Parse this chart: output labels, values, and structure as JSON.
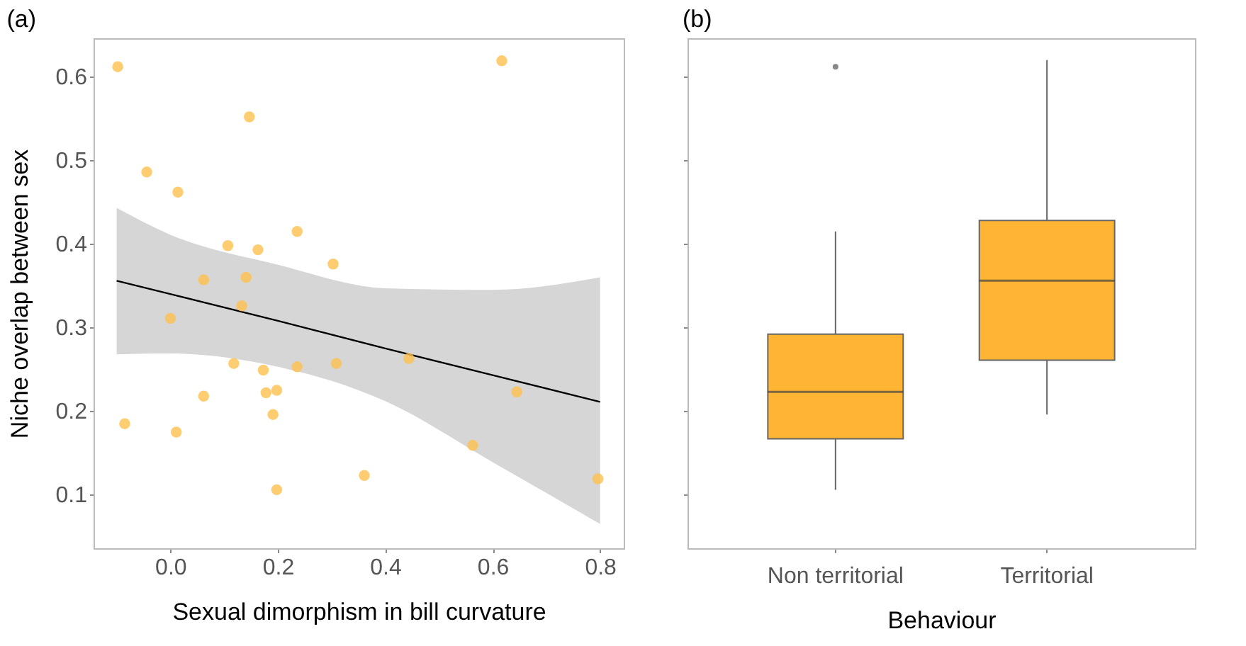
{
  "chart_data": [
    {
      "type": "scatter",
      "title": "(a)",
      "xlabel": "Sexual dimorphism in bill curvature",
      "ylabel": "Niche overlap between sex",
      "xlim": [
        -0.143,
        0.844
      ],
      "ylim": [
        0.036,
        0.646
      ],
      "xticks": [
        {
          "value": 0,
          "label": "0.0"
        },
        0.2,
        0.4,
        0.6,
        0.8
      ],
      "yticks": [
        0.1,
        0.2,
        0.3,
        0.4,
        0.5,
        0.6
      ],
      "grid": false,
      "series": [
        {
          "type": "scatter",
          "marker": "circle",
          "color": "#ffc04d",
          "x": [
            -0.098,
            0.617,
            0.147,
            -0.044,
            0.014,
            0.107,
            0.163,
            0.236,
            0.303,
            0.062,
            0.141,
            0.133,
            0.0,
            0.118,
            0.173,
            0.236,
            0.309,
            0.444,
            0.062,
            0.178,
            0.198,
            0.191,
            0.645,
            -0.085,
            0.011,
            0.563,
            0.361,
            0.198,
            0.796
          ],
          "values": [
            0.612,
            0.619,
            0.552,
            0.486,
            0.462,
            0.398,
            0.393,
            0.415,
            0.376,
            0.357,
            0.36,
            0.326,
            0.311,
            0.257,
            0.249,
            0.253,
            0.257,
            0.263,
            0.218,
            0.222,
            0.225,
            0.196,
            0.223,
            0.185,
            0.175,
            0.159,
            0.123,
            0.106,
            0.119
          ]
        },
        {
          "type": "line",
          "color": "#000000",
          "x": [
            -0.1,
            0.0,
            0.2,
            0.4,
            0.6,
            0.8
          ],
          "values": [
            0.356,
            0.34,
            0.308,
            0.275,
            0.243,
            0.211
          ],
          "lower": [
            0.268,
            0.269,
            0.253,
            0.212,
            0.139,
            0.065
          ],
          "upper": [
            0.443,
            0.411,
            0.375,
            0.347,
            0.345,
            0.36
          ]
        }
      ]
    },
    {
      "type": "box",
      "title": "(b)",
      "xlabel": "Behaviour",
      "categories": [
        "Non territorial",
        "Territorial"
      ],
      "ylim": [
        0.036,
        0.646
      ],
      "yticks": [
        0.1,
        0.2,
        0.3,
        0.4,
        0.5,
        0.6
      ],
      "tick_labels": "x",
      "grid": false,
      "series": [
        {
          "color": "#ffb533",
          "boxes": [
            {
              "low": 0.106,
              "q1": 0.167,
              "median": 0.223,
              "q3": 0.292,
              "high": 0.415,
              "outliers": [
                0.612
              ]
            },
            {
              "low": 0.196,
              "q1": 0.261,
              "median": 0.356,
              "q3": 0.428,
              "high": 0.62
            }
          ]
        }
      ]
    }
  ]
}
